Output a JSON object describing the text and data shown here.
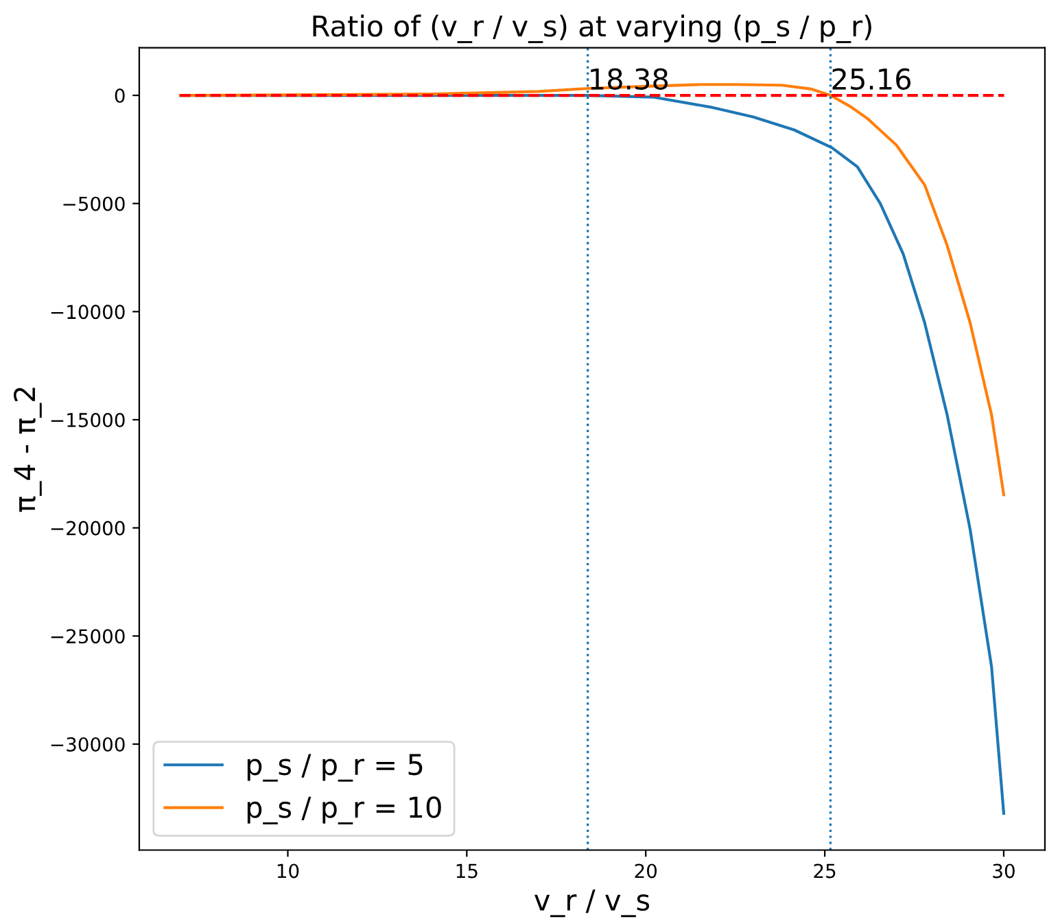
{
  "chart_data": {
    "type": "line",
    "title": "Ratio of (v_r / v_s) at varying (p_s / p_r)",
    "xlabel": "v_r / v_s",
    "ylabel": "π_4 - π_2",
    "series": [
      {
        "name": "p_s / p_r = 5",
        "color": "#1f77b4",
        "x": [
          7,
          10,
          14,
          17,
          18.38,
          20.2,
          21.8,
          23,
          24.15,
          25.2,
          25.91,
          26.55,
          27.19,
          27.79,
          28.42,
          29.06,
          29.66,
          30
        ],
        "values": [
          0,
          0,
          0,
          0,
          0,
          -80,
          -540,
          -1000,
          -1600,
          -2420,
          -3300,
          -5000,
          -7330,
          -10510,
          -14780,
          -20060,
          -26430,
          -33200
        ]
      },
      {
        "name": "p_s / p_r = 10",
        "color": "#ff7f0e",
        "x": [
          7,
          10,
          14,
          17,
          18.38,
          20,
          21.5,
          22.57,
          23.8,
          24.6,
          25.16,
          25.7,
          26.2,
          27.0,
          27.79,
          28.42,
          29.06,
          29.66,
          30
        ],
        "values": [
          0,
          20,
          60,
          180,
          320,
          420,
          500,
          500,
          470,
          300,
          0,
          -500,
          -1080,
          -2300,
          -4140,
          -6940,
          -10510,
          -14780,
          -18470
        ]
      }
    ],
    "xlim": [
      5.85,
      31.15
    ],
    "ylim": [
      -34900,
      2200
    ],
    "xticks": [
      10,
      15,
      20,
      25,
      30
    ],
    "yticks": [
      {
        "value": -30000,
        "label": "−30000"
      },
      {
        "value": -25000,
        "label": "−25000"
      },
      {
        "value": -20000,
        "label": "−20000"
      },
      {
        "value": -15000,
        "label": "−15000"
      },
      {
        "value": -10000,
        "label": "−10000"
      },
      {
        "value": -5000,
        "label": "−5000"
      },
      0
    ],
    "ref_lines": [
      {
        "axis": "y",
        "value": 0,
        "color": "#ff0000",
        "line_style": "dashed"
      },
      {
        "axis": "x",
        "value": 18.38,
        "label": "18.38",
        "color": "#1f77b4",
        "line_style": "dotted"
      },
      {
        "axis": "x",
        "value": 25.16,
        "label": "25.16",
        "color": "#1f77b4",
        "line_style": "dotted"
      }
    ],
    "legend": "bottom left",
    "grid": false
  }
}
